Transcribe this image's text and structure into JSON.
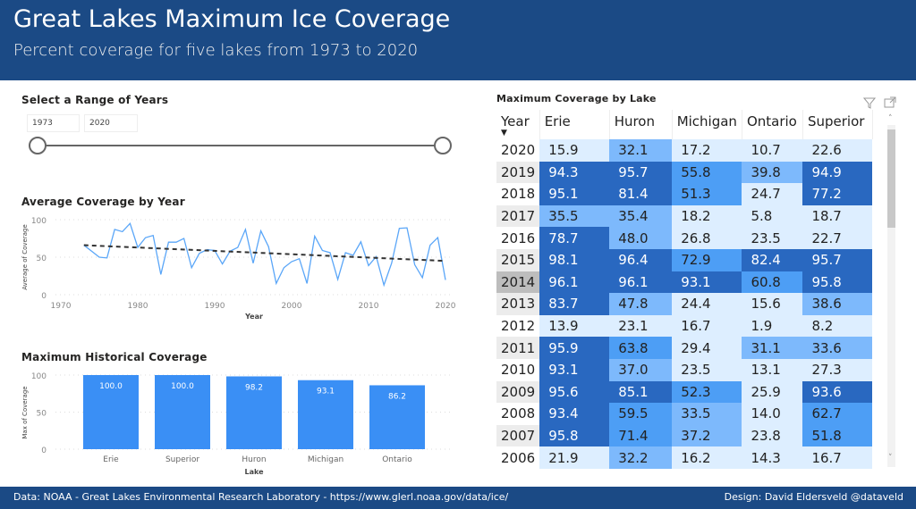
{
  "header": {
    "title": "Great Lakes Maximum Ice Coverage",
    "subtitle": "Percent coverage for five lakes from 1973 to 2020"
  },
  "footer": {
    "source": "Data: NOAA - Great Lakes Environmental Research Laboratory - https://www.glerl.noaa.gov/data/ice/",
    "credit": "Design: David Eldersveld  @dataveld"
  },
  "slicer": {
    "title": "Select a Range of Years",
    "start": "1973",
    "end": "2020"
  },
  "colors": {
    "header": "#1b4a85",
    "line": "#5aa6f8",
    "bar": "#3a8ff5",
    "bin_low": "#ddeeff",
    "bin_mid_low": "#7db9fc",
    "bin_mid_high": "#4d9ef5",
    "bin_high": "#2968c0"
  },
  "chart_data": [
    {
      "type": "line",
      "title": "Average Coverage by Year",
      "xlabel": "Year",
      "ylabel": "Average of Coverage",
      "xlim": [
        1970,
        2020
      ],
      "ylim": [
        0,
        100
      ],
      "xticks": [
        "1970",
        "1980",
        "1990",
        "2000",
        "2010",
        "2020"
      ],
      "yticks": [
        "0",
        "50",
        "100"
      ],
      "grid": true,
      "trendline": {
        "style": "dashed",
        "from": [
          1973,
          66
        ],
        "to": [
          2020,
          45
        ]
      },
      "x": [
        1973,
        1974,
        1975,
        1976,
        1977,
        1978,
        1979,
        1980,
        1981,
        1982,
        1983,
        1984,
        1985,
        1986,
        1987,
        1988,
        1989,
        1990,
        1991,
        1992,
        1993,
        1994,
        1995,
        1996,
        1997,
        1998,
        1999,
        2000,
        2001,
        2002,
        2003,
        2004,
        2005,
        2006,
        2007,
        2008,
        2009,
        2010,
        2011,
        2012,
        2013,
        2014,
        2015,
        2016,
        2017,
        2018,
        2019,
        2020
      ],
      "y": [
        66,
        58,
        50,
        49,
        87,
        84,
        95,
        63,
        76,
        79,
        27,
        70,
        70,
        75,
        36,
        55,
        60,
        59,
        41,
        58,
        63,
        87,
        42,
        85,
        64,
        15,
        36,
        44,
        48,
        15,
        78,
        59,
        56,
        20.3,
        56.0,
        52.6,
        70.5,
        38.8,
        50.8,
        12.8,
        42.0,
        88.4,
        89.1,
        40.0,
        22.7,
        66.0,
        76.1,
        19.7
      ]
    },
    {
      "type": "bar",
      "title": "Maximum Historical Coverage",
      "xlabel": "Lake",
      "ylabel": "Max of Coverage",
      "ylim": [
        0,
        100
      ],
      "yticks": [
        "0",
        "50",
        "100"
      ],
      "grid": true,
      "categories": [
        "Erie",
        "Superior",
        "Huron",
        "Michigan",
        "Ontario"
      ],
      "values": [
        100.0,
        100.0,
        98.2,
        93.1,
        86.2
      ],
      "labels": [
        "100.0",
        "100.0",
        "98.2",
        "93.1",
        "86.2"
      ]
    }
  ],
  "table": {
    "title": "Maximum Coverage by Lake",
    "columns": [
      "Year",
      "Erie",
      "Huron",
      "Michigan",
      "Ontario",
      "Superior"
    ],
    "sort": "Year descending",
    "rows": [
      [
        "2020",
        "15.9",
        "32.1",
        "17.2",
        "10.7",
        "22.6"
      ],
      [
        "2019",
        "94.3",
        "95.7",
        "55.8",
        "39.8",
        "94.9"
      ],
      [
        "2018",
        "95.1",
        "81.4",
        "51.3",
        "24.7",
        "77.2"
      ],
      [
        "2017",
        "35.5",
        "35.4",
        "18.2",
        "5.8",
        "18.7"
      ],
      [
        "2016",
        "78.7",
        "48.0",
        "26.8",
        "23.5",
        "22.7"
      ],
      [
        "2015",
        "98.1",
        "96.4",
        "72.9",
        "82.4",
        "95.7"
      ],
      [
        "2014",
        "96.1",
        "96.1",
        "93.1",
        "60.8",
        "95.8"
      ],
      [
        "2013",
        "83.7",
        "47.8",
        "24.4",
        "15.6",
        "38.6"
      ],
      [
        "2012",
        "13.9",
        "23.1",
        "16.7",
        "1.9",
        "8.2"
      ],
      [
        "2011",
        "95.9",
        "63.8",
        "29.4",
        "31.1",
        "33.6"
      ],
      [
        "2010",
        "93.1",
        "37.0",
        "23.5",
        "13.1",
        "27.3"
      ],
      [
        "2009",
        "95.6",
        "85.1",
        "52.3",
        "25.9",
        "93.6"
      ],
      [
        "2008",
        "93.4",
        "59.5",
        "33.5",
        "14.0",
        "62.7"
      ],
      [
        "2007",
        "95.8",
        "71.4",
        "37.2",
        "23.8",
        "51.8"
      ],
      [
        "2006",
        "21.9",
        "32.2",
        "16.2",
        "14.3",
        "16.7"
      ]
    ]
  }
}
